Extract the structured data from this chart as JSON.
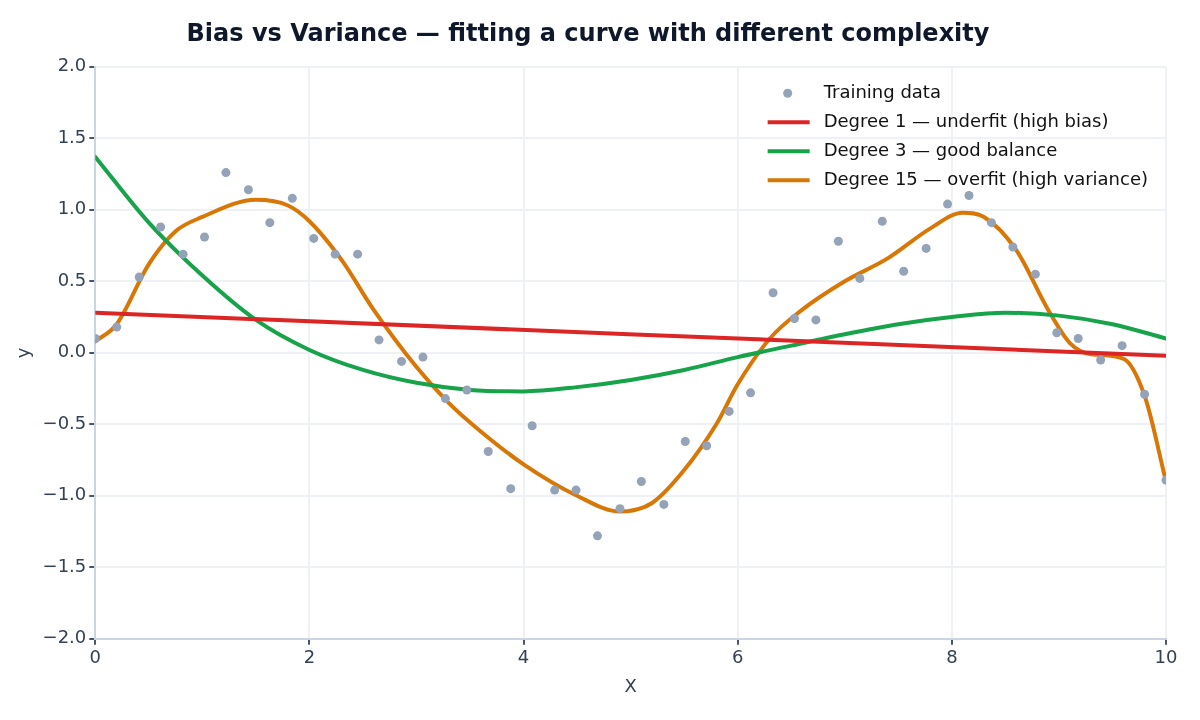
{
  "chart_data": {
    "type": "line",
    "title": "Bias vs Variance — fitting a curve with different complexity",
    "xlabel": "X",
    "ylabel": "y",
    "xlim": [
      0,
      10
    ],
    "xticks": [
      0,
      2,
      4,
      6,
      8,
      10
    ],
    "ylim": [
      -2,
      2
    ],
    "yticks": [
      {
        "value": -2,
        "label": "−2.0"
      },
      {
        "value": -1.5,
        "label": "−1.5"
      },
      {
        "value": -1,
        "label": "−1.0"
      },
      {
        "value": -0.5,
        "label": "−0.5"
      },
      {
        "value": 0,
        "label": "0.0"
      },
      {
        "value": 0.5,
        "label": "0.5"
      },
      {
        "value": 1,
        "label": "1.0"
      },
      {
        "value": 1.5,
        "label": "1.5"
      },
      {
        "value": 2,
        "label": "2.0"
      }
    ],
    "grid": true,
    "legend": "top right",
    "series": [
      {
        "name": "Training data",
        "type": "scatter",
        "marker": "circle",
        "color": "#94a3b8",
        "x": [
          0,
          0.2,
          0.41,
          0.61,
          0.82,
          1.02,
          1.22,
          1.43,
          1.63,
          1.84,
          2.04,
          2.24,
          2.45,
          2.65,
          2.86,
          3.06,
          3.27,
          3.47,
          3.67,
          3.88,
          4.08,
          4.29,
          4.49,
          4.69,
          4.9,
          5.1,
          5.31,
          5.51,
          5.71,
          5.92,
          6.12,
          6.33,
          6.53,
          6.73,
          6.94,
          7.14,
          7.35,
          7.55,
          7.76,
          7.96,
          8.16,
          8.37,
          8.57,
          8.78,
          8.98,
          9.18,
          9.39,
          9.59,
          9.8,
          10
        ],
        "values": [
          0.1,
          0.18,
          0.53,
          0.88,
          0.69,
          0.81,
          1.26,
          1.14,
          0.91,
          1.08,
          0.8,
          0.69,
          0.69,
          0.09,
          -0.06,
          -0.03,
          -0.32,
          -0.26,
          -0.69,
          -0.95,
          -0.51,
          -0.96,
          -0.96,
          -1.28,
          -1.09,
          -0.9,
          -1.06,
          -0.62,
          -0.65,
          -0.41,
          -0.28,
          0.42,
          0.24,
          0.23,
          0.78,
          0.52,
          0.92,
          0.57,
          0.73,
          1.04,
          1.1,
          0.91,
          0.74,
          0.55,
          0.14,
          0.1,
          -0.05,
          0.05,
          -0.29,
          -0.89
        ]
      },
      {
        "name": "Degree 1 — underfit (high bias)",
        "type": "line",
        "marker": "none",
        "line_style": "solid",
        "color": "#dc2626",
        "x": [
          0,
          10
        ],
        "values": [
          0.28,
          -0.02
        ]
      },
      {
        "name": "Degree 3 — good balance",
        "type": "line",
        "marker": "none",
        "line_style": "solid",
        "color": "#16a34a",
        "x": [
          0,
          0.5,
          1,
          1.5,
          2,
          2.5,
          3,
          3.5,
          4,
          4.5,
          5,
          5.5,
          6,
          6.5,
          7,
          7.5,
          8,
          8.5,
          9,
          9.5,
          10
        ],
        "values": [
          1.37,
          0.91,
          0.54,
          0.23,
          0.02,
          -0.12,
          -0.21,
          -0.26,
          -0.27,
          -0.24,
          -0.19,
          -0.12,
          -0.03,
          0.05,
          0.13,
          0.2,
          0.25,
          0.28,
          0.26,
          0.2,
          0.1
        ]
      },
      {
        "name": "Degree 15 — overfit (high variance)",
        "type": "line",
        "marker": "none",
        "line_style": "solid",
        "color": "#d97706",
        "x": [
          0,
          0.2,
          0.5,
          0.75,
          1,
          1.5,
          1.8,
          2,
          2.3,
          2.6,
          3,
          3.3,
          3.6,
          4,
          4.5,
          4.9,
          5.2,
          5.5,
          5.8,
          6,
          6.3,
          6.6,
          7,
          7.4,
          7.8,
          8.1,
          8.3,
          8.6,
          8.9,
          9.1,
          9.3,
          9.6,
          9.8,
          10
        ],
        "values": [
          0.08,
          0.2,
          0.62,
          0.85,
          0.95,
          1.07,
          1.03,
          0.92,
          0.65,
          0.3,
          -0.1,
          -0.35,
          -0.55,
          -0.78,
          -1.0,
          -1.11,
          -1.05,
          -0.82,
          -0.5,
          -0.22,
          0.1,
          0.3,
          0.5,
          0.66,
          0.87,
          0.98,
          0.95,
          0.72,
          0.3,
          0.07,
          -0.01,
          -0.04,
          -0.3,
          -0.9
        ]
      }
    ]
  }
}
